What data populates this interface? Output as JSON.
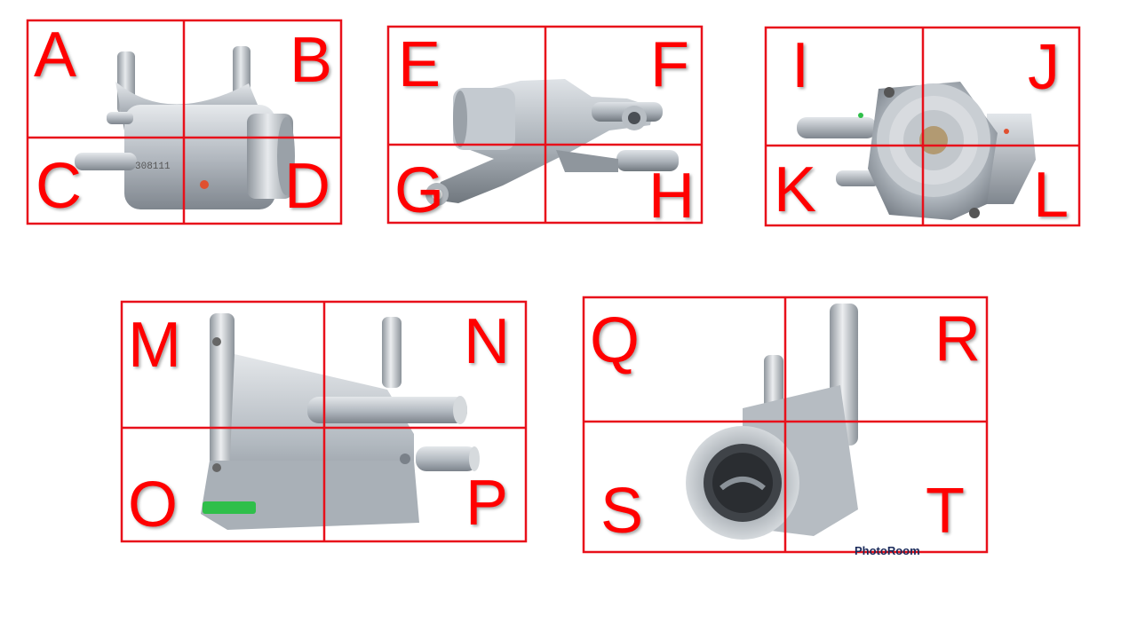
{
  "colors": {
    "grid": "#e8101a",
    "label": "#ff0000",
    "metal": "#b9bfc6",
    "badge": "#2fbf4a"
  },
  "panels": [
    {
      "id": "p1",
      "labels": [
        "A",
        "B",
        "C",
        "D"
      ],
      "part": "thermostat-housing-side-view-1"
    },
    {
      "id": "p2",
      "labels": [
        "E",
        "F",
        "G",
        "H"
      ],
      "part": "thermostat-housing-angled-view"
    },
    {
      "id": "p3",
      "labels": [
        "I",
        "J",
        "K",
        "L"
      ],
      "part": "thermostat-housing-front-view"
    },
    {
      "id": "p4",
      "labels": [
        "M",
        "N",
        "O",
        "P"
      ],
      "part": "thermostat-housing-side-view-2"
    },
    {
      "id": "p5",
      "labels": [
        "Q",
        "R",
        "S",
        "T"
      ],
      "part": "thermostat-housing-outlet-view"
    }
  ],
  "watermark": "PhotoRoom"
}
